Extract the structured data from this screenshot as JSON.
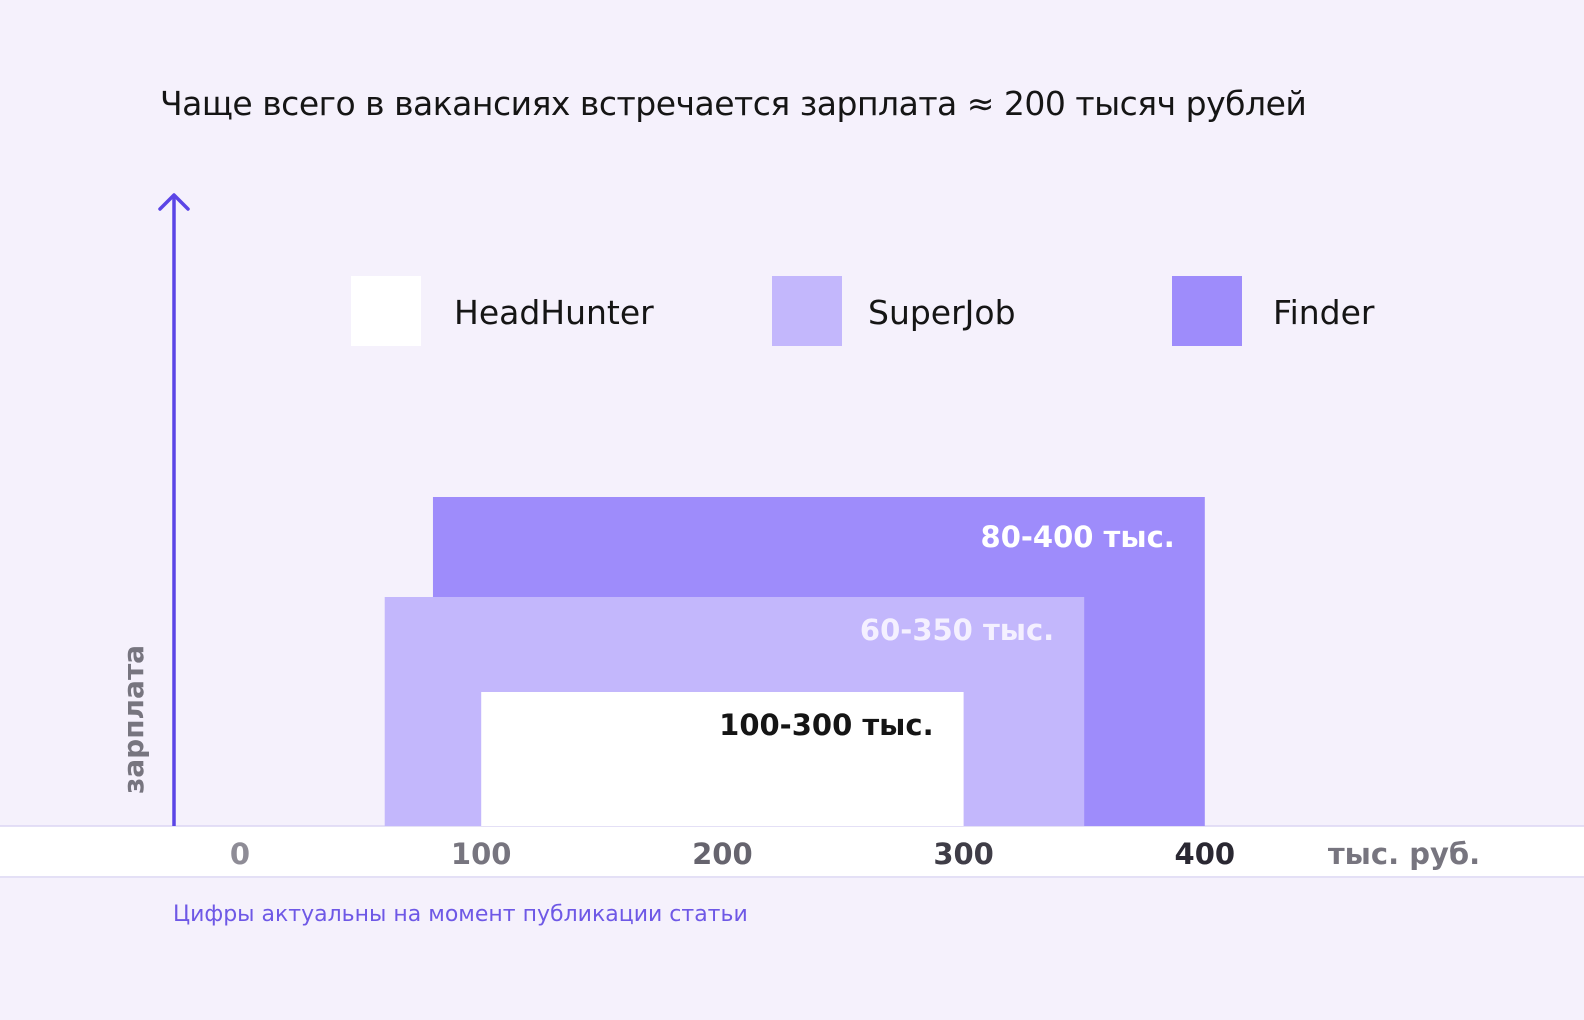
{
  "title": "Чаще всего в вакансиях встречается зарплата ≈ 200 тысяч рублей",
  "footnote": "Цифры актуальны на момент публикации статьи",
  "colors": {
    "background": "#f5f1fc",
    "axis": "#5b45e6",
    "axis_band": "#ffffff",
    "headhunter": "#ffffff",
    "superjob": "#c3b7fc",
    "finder": "#9e8cfb",
    "finder_label": "#ffffff",
    "superjob_label": "#f4f0ff",
    "headhunter_label": "#151515"
  },
  "chart_data": {
    "type": "bar",
    "title": "Чаще всего в вакансиях встречается зарплата ≈ 200 тысяч рублей",
    "xlabel": "тыс. руб.",
    "ylabel": "зарплата",
    "xlim": [
      0,
      400
    ],
    "ticks": [
      "0",
      "100",
      "200",
      "300",
      "400"
    ],
    "tick_values": [
      0,
      100,
      200,
      300,
      400
    ],
    "legend_position": "top",
    "series": [
      {
        "name": "HeadHunter",
        "min": 100,
        "max": 300,
        "label": "100-300 тыс.",
        "color": "#ffffff"
      },
      {
        "name": "SuperJob",
        "min": 60,
        "max": 350,
        "label": "60-350 тыс.",
        "color": "#c3b7fc"
      },
      {
        "name": "Finder",
        "min": 80,
        "max": 400,
        "label": "80-400 тыс.",
        "color": "#9e8cfb"
      }
    ]
  }
}
